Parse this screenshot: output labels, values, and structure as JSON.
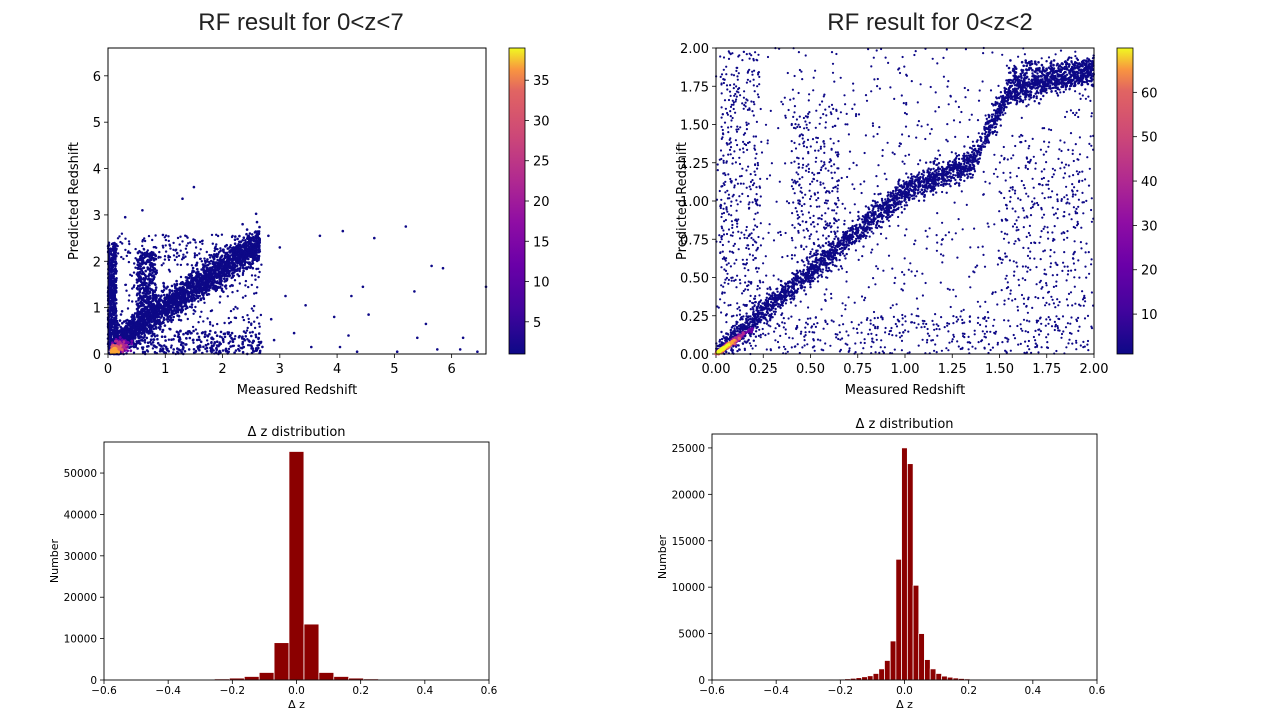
{
  "slide": {
    "left_title": "RF result for 0<z<7",
    "right_title": "RF result for 0<z<2"
  },
  "chart_data": [
    {
      "id": "scatter_0_7",
      "type": "scatter",
      "title": "RF result for 0<z<7",
      "xlabel": "Measured Redshift",
      "ylabel": "Predicted Redshift",
      "xlim": [
        0,
        6.6
      ],
      "ylim": [
        0,
        6.6
      ],
      "xticks": [
        0,
        1,
        2,
        3,
        4,
        5,
        6
      ],
      "xtick_labels": [
        "0",
        "1",
        "2",
        "3",
        "4",
        "5",
        "6"
      ],
      "yticks": [
        0,
        1,
        2,
        3,
        4,
        5,
        6
      ],
      "ytick_labels": [
        "0",
        "1",
        "2",
        "3",
        "4",
        "5",
        "6"
      ],
      "colorbar": {
        "min": 1,
        "max": 39,
        "ticks": [
          5,
          10,
          15,
          20,
          25,
          30,
          35
        ],
        "tick_labels": [
          "5",
          "10",
          "15",
          "20",
          "25",
          "30",
          "35"
        ],
        "colormap": "plasma"
      },
      "outliers": [
        [
          1.3,
          3.35
        ],
        [
          1.5,
          3.6
        ],
        [
          0.6,
          3.1
        ],
        [
          0.3,
          2.95
        ],
        [
          2.35,
          2.8
        ],
        [
          2.8,
          2.55
        ],
        [
          3.7,
          2.55
        ],
        [
          4.1,
          2.65
        ],
        [
          4.65,
          2.5
        ],
        [
          5.2,
          2.75
        ],
        [
          5.65,
          1.9
        ],
        [
          5.85,
          1.85
        ],
        [
          4.45,
          1.45
        ],
        [
          5.35,
          1.35
        ],
        [
          3.1,
          1.25
        ],
        [
          3.45,
          1.05
        ],
        [
          4.55,
          0.85
        ],
        [
          5.55,
          0.65
        ],
        [
          5.4,
          0.35
        ],
        [
          6.2,
          0.35
        ],
        [
          6.6,
          1.45
        ],
        [
          4.05,
          0.15
        ],
        [
          3.55,
          0.15
        ],
        [
          4.35,
          0.05
        ],
        [
          5.05,
          0.05
        ],
        [
          5.75,
          0.1
        ],
        [
          6.15,
          0.1
        ],
        [
          2.85,
          0.75
        ],
        [
          3.25,
          0.45
        ],
        [
          2.9,
          0.3
        ],
        [
          3.95,
          0.8
        ],
        [
          4.2,
          0.4
        ],
        [
          3.0,
          2.3
        ],
        [
          4.25,
          1.25
        ],
        [
          6.45,
          0.05
        ]
      ]
    },
    {
      "id": "scatter_0_2",
      "type": "scatter",
      "title": "RF result for 0<z<2",
      "xlabel": "Measured Redshift",
      "ylabel": "Predicted Redshift",
      "xlim": [
        0,
        2
      ],
      "ylim": [
        0,
        2
      ],
      "xticks": [
        0,
        0.25,
        0.5,
        0.75,
        1.0,
        1.25,
        1.5,
        1.75,
        2.0
      ],
      "xtick_labels": [
        "0.00",
        "0.25",
        "0.50",
        "0.75",
        "1.00",
        "1.25",
        "1.50",
        "1.75",
        "2.00"
      ],
      "yticks": [
        0,
        0.25,
        0.5,
        0.75,
        1.0,
        1.25,
        1.5,
        1.75,
        2.0
      ],
      "ytick_labels": [
        "0.00",
        "0.25",
        "0.50",
        "0.75",
        "1.00",
        "1.25",
        "1.50",
        "1.75",
        "2.00"
      ],
      "colorbar": {
        "min": 1,
        "max": 70,
        "ticks": [
          10,
          20,
          30,
          40,
          50,
          60
        ],
        "tick_labels": [
          "10",
          "20",
          "30",
          "40",
          "50",
          "60"
        ],
        "colormap": "plasma"
      }
    },
    {
      "id": "hist_0_7",
      "type": "bar",
      "title": "Δ z distribution",
      "xlabel": "Δ z",
      "ylabel": "Number",
      "xlim": [
        -0.6,
        0.6
      ],
      "ylim": [
        0,
        57500
      ],
      "xticks": [
        -0.6,
        -0.4,
        -0.2,
        0.0,
        0.2,
        0.4,
        0.6
      ],
      "xtick_labels": [
        "−0.6",
        "−0.4",
        "−0.2",
        "0.0",
        "0.2",
        "0.4",
        "0.6"
      ],
      "yticks": [
        0,
        10000,
        20000,
        30000,
        40000,
        50000
      ],
      "ytick_labels": [
        "0",
        "10000",
        "20000",
        "30000",
        "40000",
        "50000"
      ],
      "bin_width": 0.0465,
      "bin_centers": [
        -0.5581,
        -0.5116,
        -0.4651,
        -0.4186,
        -0.3721,
        -0.3256,
        -0.2791,
        -0.2326,
        -0.186,
        -0.1395,
        -0.093,
        -0.0465,
        0.0,
        0.0465,
        0.093,
        0.1395,
        0.186,
        0.2326,
        0.2791,
        0.3256,
        0.3721,
        0.4186,
        0.4651,
        0.5116,
        0.5581
      ],
      "values": [
        20,
        30,
        50,
        70,
        100,
        130,
        180,
        260,
        450,
        850,
        1800,
        9000,
        55200,
        13500,
        1800,
        850,
        450,
        260,
        170,
        120,
        80,
        50,
        30,
        20,
        10
      ]
    },
    {
      "id": "hist_0_2",
      "type": "bar",
      "title": "Δ z distribution",
      "xlabel": "Δ z",
      "ylabel": "Number",
      "xlim": [
        -0.6,
        0.6
      ],
      "ylim": [
        0,
        26500
      ],
      "xticks": [
        -0.6,
        -0.4,
        -0.2,
        0.0,
        0.2,
        0.4,
        0.6
      ],
      "xtick_labels": [
        "−0.6",
        "−0.4",
        "−0.2",
        "0.0",
        "0.2",
        "0.4",
        "0.6"
      ],
      "yticks": [
        0,
        5000,
        10000,
        15000,
        20000,
        25000
      ],
      "ytick_labels": [
        "0",
        "5000",
        "10000",
        "15000",
        "20000",
        "25000"
      ],
      "bin_width": 0.0178,
      "bin_centers": [
        -0.2844,
        -0.2667,
        -0.2489,
        -0.2311,
        -0.2133,
        -0.1956,
        -0.1778,
        -0.16,
        -0.1422,
        -0.1244,
        -0.1067,
        -0.0889,
        -0.0711,
        -0.0533,
        -0.0356,
        -0.0178,
        0.0,
        0.0178,
        0.0356,
        0.0533,
        0.0711,
        0.0889,
        0.1067,
        0.1244,
        0.1422,
        0.16,
        0.1778,
        0.1956,
        0.2133,
        0.2311,
        0.2489,
        0.2667,
        0.2844,
        0.3022,
        0.32,
        0.3378,
        0.3556,
        0.3733,
        0.3911,
        0.4089
      ],
      "values": [
        20,
        30,
        40,
        60,
        80,
        100,
        130,
        180,
        250,
        350,
        450,
        700,
        1200,
        2100,
        4200,
        13000,
        25000,
        23300,
        10200,
        5000,
        2200,
        1200,
        700,
        420,
        300,
        220,
        160,
        120,
        90,
        70,
        55,
        45,
        35,
        30,
        25,
        20,
        15,
        12,
        10,
        8
      ]
    }
  ]
}
